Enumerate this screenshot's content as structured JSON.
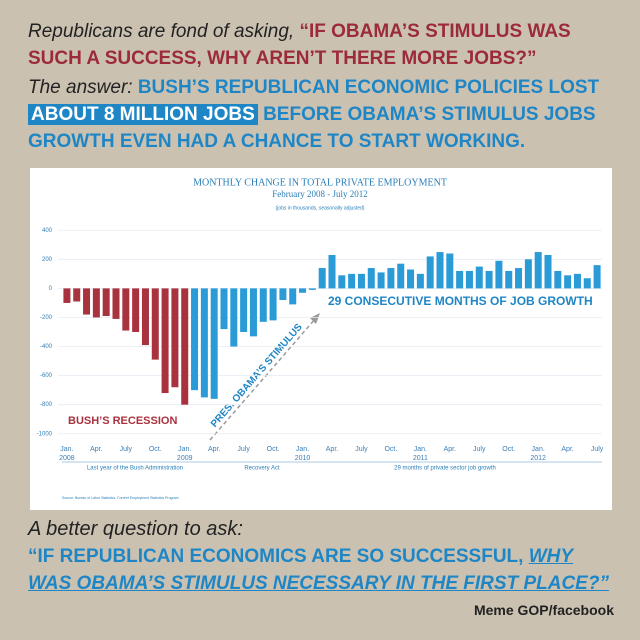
{
  "header": {
    "line1_intro": "Republicans are fond of asking,",
    "line1_quote": "“IF OBAMA’S STIMULUS WAS SUCH A SUCCESS, WHY AREN’T THERE MORE JOBS?”",
    "line2_intro": "The answer:",
    "line2_a": "BUSH’S REPUBLICAN ECONOMIC POLICIES LOST",
    "line2_highlight": "ABOUT 8 MILLION JOBS",
    "line2_b": "BEFORE OBAMA’S STIMULUS JOBS GROWTH EVEN HAD A CHANCE TO START WORKING."
  },
  "chart_data": {
    "type": "bar",
    "title": "MONTHLY CHANGE IN TOTAL PRIVATE EMPLOYMENT",
    "subtitle": "February 2008 - July 2012",
    "note": "(jobs in thousands, seasonally adjusted)",
    "source": "Source: Bureau of Labor Statistics, Current Employment Statistics Program",
    "categories": [
      "Jan.\n2008",
      null,
      null,
      "Apr.",
      null,
      null,
      "July",
      null,
      null,
      "Oct.",
      null,
      null,
      "Jan.\n2009",
      null,
      null,
      "Apr.",
      null,
      null,
      "July",
      null,
      null,
      "Oct.",
      null,
      null,
      "Jan.\n2010",
      null,
      null,
      "Apr.",
      null,
      null,
      "July",
      null,
      null,
      "Oct.",
      null,
      null,
      "Jan.\n2011",
      null,
      null,
      "Apr.",
      null,
      null,
      "July",
      null,
      null,
      "Oct.",
      null,
      null,
      "Jan.\n2012",
      null,
      null,
      "Apr.",
      null,
      null,
      "July"
    ],
    "series": [
      {
        "color": "#a8323e",
        "values": [
          -100,
          -90,
          -180,
          -200,
          -190,
          -210,
          -290,
          -300,
          -390,
          -490,
          -720,
          -680,
          -800,
          null,
          null,
          null,
          null,
          null,
          null,
          null,
          null,
          null,
          null,
          null,
          null,
          null,
          null,
          null,
          null,
          null,
          null,
          null,
          null,
          null,
          null,
          null,
          null,
          null,
          null,
          null,
          null,
          null,
          null,
          null,
          null,
          null,
          null,
          null,
          null,
          null,
          null,
          null,
          null,
          null,
          null
        ]
      },
      {
        "color": "#2a9bd6",
        "values": [
          null,
          null,
          null,
          null,
          null,
          null,
          null,
          null,
          null,
          null,
          null,
          null,
          null,
          -700,
          -750,
          -760,
          -280,
          -400,
          -300,
          -330,
          -230,
          -220,
          -80,
          -110,
          -30,
          -10,
          140,
          230,
          90,
          100,
          100,
          140,
          110,
          140,
          170,
          130,
          100,
          220,
          250,
          240,
          120,
          120,
          150,
          120,
          190,
          120,
          140,
          200,
          250,
          230,
          120,
          90,
          100,
          70,
          160
        ]
      }
    ],
    "ylim": [
      -1050,
      450
    ],
    "yticks": [
      -1000,
      -800,
      -600,
      -400,
      -200,
      0,
      200,
      400
    ],
    "grid": true,
    "periods": [
      "Last year of the Bush Administration",
      "Recovery Act",
      "29 months of private sector job growth"
    ],
    "annotations": {
      "recession": "BUSH’S RECESSION",
      "stimulus": "PRES. OBAMA’S STIMULUS",
      "growth": "29 CONSECUTIVE MONTHS OF JOB GROWTH"
    }
  },
  "footer": {
    "question": "A better question to ask:",
    "quote_a": "“IF REPUBLICAN ECONOMICS ARE SO SUCCESSFUL,",
    "quote_b": "WHY WAS OBAMA’S STIMULUS NECESSARY IN THE FIRST PLACE?”",
    "credit": "Meme GOP/facebook"
  }
}
